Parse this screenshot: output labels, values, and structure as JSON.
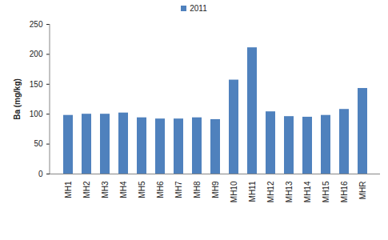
{
  "chart_data": {
    "type": "bar",
    "categories": [
      "MH1",
      "MH2",
      "MH3",
      "MH4",
      "MH5",
      "MH6",
      "MH7",
      "MH8",
      "MH9",
      "MH10",
      "MH11",
      "MH12",
      "MH13",
      "MH14",
      "MH15",
      "MH16",
      "MHR"
    ],
    "series": [
      {
        "name": "2011",
        "color": "#4f81bd",
        "values": [
          98,
          100,
          100,
          102,
          94,
          92,
          92,
          94,
          91,
          157,
          211,
          104,
          96,
          95,
          98,
          108,
          143
        ]
      }
    ],
    "y_label": "Ba (mg/kg)",
    "ylim": [
      0,
      250
    ],
    "yticks": [
      0,
      50,
      100,
      150,
      200,
      250
    ],
    "grid": false,
    "legend": "top"
  }
}
